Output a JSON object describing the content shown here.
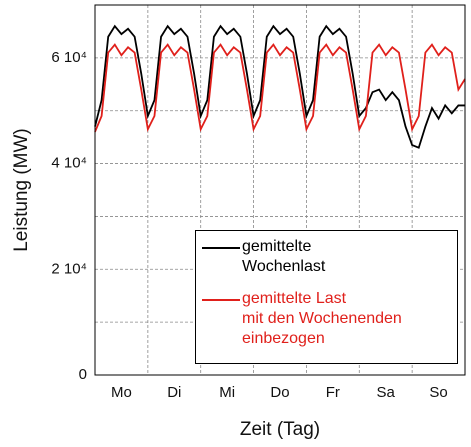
{
  "chart_data": {
    "type": "line",
    "xlabel": "Zeit (Tag)",
    "ylabel": "Leistung (MW)",
    "categories": [
      "Mo",
      "Di",
      "Mi",
      "Do",
      "Fr",
      "Sa",
      "So"
    ],
    "xlim": [
      0,
      168
    ],
    "xticks": [
      0,
      24,
      48,
      72,
      96,
      120,
      144,
      168
    ],
    "ylim": [
      0,
      70000
    ],
    "yticks": [
      0,
      {
        "value": 20000,
        "label": "2 10⁴"
      },
      {
        "value": 40000,
        "label": "4 10⁴"
      },
      {
        "value": 60000,
        "label": "6 10⁴"
      }
    ],
    "minor_yticks": [
      10000,
      30000,
      50000,
      70000
    ],
    "grid": true,
    "x": [
      0,
      3,
      6,
      9,
      12,
      15,
      18,
      21,
      24,
      27,
      30,
      33,
      36,
      39,
      42,
      45,
      48,
      51,
      54,
      57,
      60,
      63,
      66,
      69,
      72,
      75,
      78,
      81,
      84,
      87,
      90,
      93,
      96,
      99,
      102,
      105,
      108,
      111,
      114,
      117,
      120,
      123,
      126,
      129,
      132,
      135,
      138,
      141,
      144,
      147,
      150,
      153,
      156,
      159,
      162,
      165,
      168
    ],
    "series": [
      {
        "name": "gemittelte\nWochenlast",
        "color": "#000000",
        "values": [
          47000,
          52000,
          64000,
          66000,
          64500,
          65500,
          64000,
          57000,
          49000,
          52000,
          64000,
          66000,
          64500,
          65500,
          64000,
          57000,
          49000,
          52000,
          64000,
          66000,
          64500,
          65500,
          64000,
          57000,
          49000,
          52000,
          64000,
          66000,
          64500,
          65500,
          64000,
          57000,
          49000,
          52000,
          64000,
          66000,
          64500,
          65500,
          64000,
          57000,
          49000,
          50500,
          53500,
          54000,
          52000,
          53500,
          52000,
          47000,
          43500,
          43000,
          47000,
          50500,
          48500,
          51000,
          49500,
          51000,
          51000
        ]
      },
      {
        "name": "gemittelte Last\nmit den Wochenenden\neinbezogen",
        "color": "#e0201b",
        "values": [
          46000,
          49000,
          61000,
          62500,
          60500,
          62000,
          61000,
          54000,
          46500,
          49000,
          61000,
          62500,
          60500,
          62000,
          61000,
          54000,
          46500,
          49000,
          61000,
          62500,
          60500,
          62000,
          61000,
          54000,
          46500,
          49000,
          61000,
          62500,
          60500,
          62000,
          61000,
          54000,
          46500,
          49000,
          61000,
          62500,
          60500,
          62000,
          61000,
          54000,
          46500,
          49000,
          61000,
          62500,
          60500,
          62000,
          61000,
          54000,
          46500,
          49000,
          61000,
          62500,
          60500,
          62000,
          61000,
          54000,
          56000
        ]
      }
    ]
  }
}
